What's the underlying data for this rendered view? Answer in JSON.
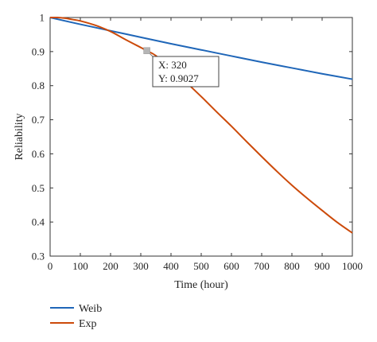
{
  "chart_data": {
    "type": "line",
    "xlabel": "Time (hour)",
    "ylabel": "Reliability",
    "xlim": [
      0,
      1000
    ],
    "ylim": [
      0.3,
      1
    ],
    "xticks": [
      0,
      100,
      200,
      300,
      400,
      500,
      600,
      700,
      800,
      900,
      1000
    ],
    "yticks": [
      0.3,
      0.4,
      0.5,
      0.6,
      0.7,
      0.8,
      0.9,
      1
    ],
    "xtick_labels": [
      "0",
      "100",
      "200",
      "300",
      "400",
      "500",
      "600",
      "700",
      "800",
      "900",
      "1000"
    ],
    "ytick_labels": [
      "0.3",
      "0.4",
      "0.5",
      "0.6",
      "0.7",
      "0.8",
      "0.9",
      "1"
    ],
    "grid": false,
    "legend_position": "bottom-left, below plot",
    "series": [
      {
        "name": "Weib",
        "color": "#1f66b8",
        "x": [
          0,
          100,
          200,
          300,
          400,
          500,
          600,
          700,
          800,
          900,
          1000
        ],
        "y": [
          1.0,
          0.98,
          0.961,
          0.942,
          0.923,
          0.905,
          0.887,
          0.869,
          0.852,
          0.835,
          0.819
        ]
      },
      {
        "name": "Exp",
        "color": "#cc4a0a",
        "x": [
          0,
          25,
          50,
          75,
          100,
          150,
          200,
          250,
          300,
          320,
          350,
          400,
          450,
          500,
          550,
          600,
          650,
          700,
          750,
          800,
          850,
          900,
          950,
          1000
        ],
        "y": [
          1.0,
          1.0,
          0.998,
          0.994,
          0.99,
          0.977,
          0.959,
          0.935,
          0.912,
          0.9027,
          0.888,
          0.85,
          0.81,
          0.768,
          0.724,
          0.681,
          0.636,
          0.592,
          0.549,
          0.508,
          0.47,
          0.434,
          0.399,
          0.368
        ]
      }
    ],
    "datatip": {
      "x_value": 320,
      "y_value": 0.9027,
      "x_text": "X: 320",
      "y_text": "Y: 0.9027"
    }
  }
}
